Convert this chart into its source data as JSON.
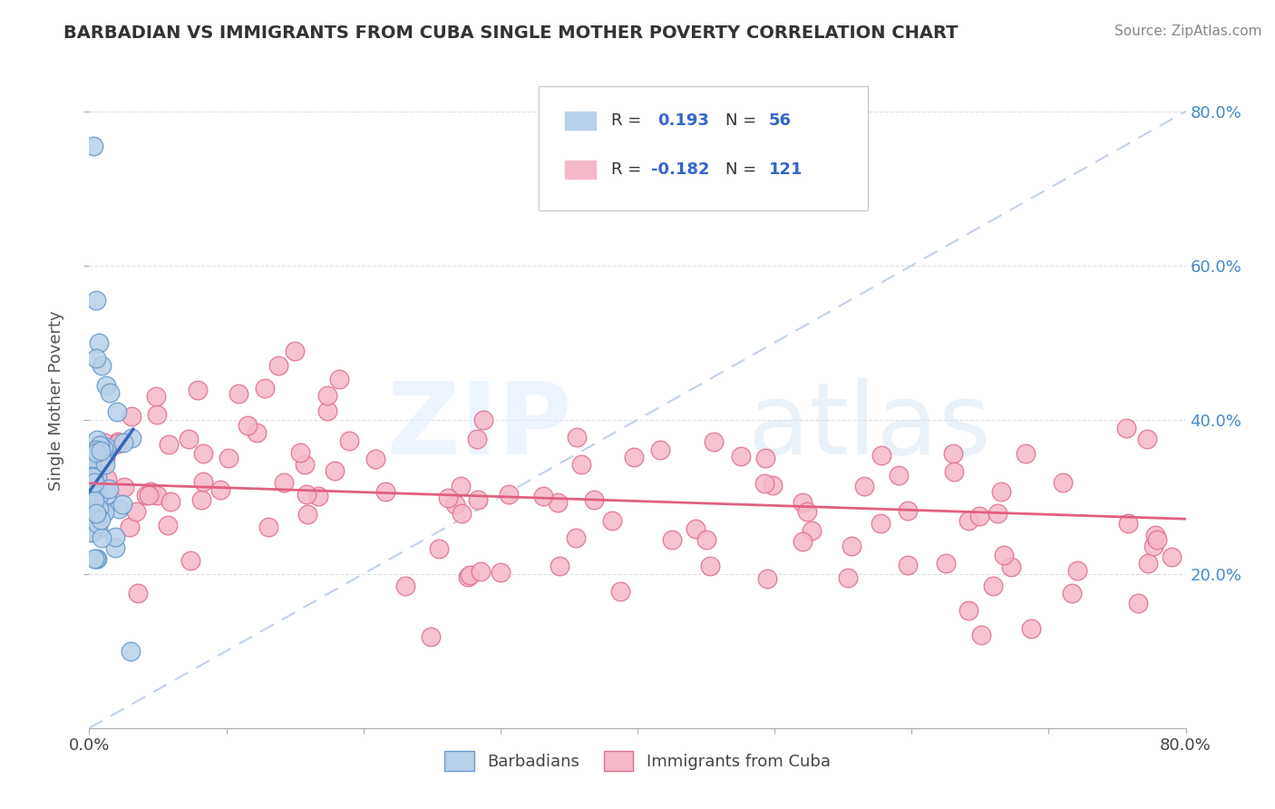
{
  "title": "BARBADIAN VS IMMIGRANTS FROM CUBA SINGLE MOTHER POVERTY CORRELATION CHART",
  "source": "Source: ZipAtlas.com",
  "ylabel": "Single Mother Poverty",
  "xlim": [
    0,
    0.8
  ],
  "ylim": [
    0,
    0.85
  ],
  "xticks": [
    0.0,
    0.1,
    0.2,
    0.3,
    0.4,
    0.5,
    0.6,
    0.7,
    0.8
  ],
  "xtick_labels_show": [
    "0.0%",
    "",
    "",
    "",
    "",
    "",
    "",
    "",
    "80.0%"
  ],
  "yticks_right": [
    0.2,
    0.4,
    0.6,
    0.8
  ],
  "ytick_labels_right": [
    "20.0%",
    "40.0%",
    "60.0%",
    "80.0%"
  ],
  "blue_color": "#b8d0e8",
  "pink_color": "#f5b8c8",
  "blue_edge": "#6699cc",
  "pink_edge": "#e07090",
  "trend_blue": "#3366bb",
  "trend_pink": "#e06080",
  "diag_color": "#b8cce4",
  "grid_color": "#d8d8d8",
  "R_blue": 0.193,
  "N_blue": 56,
  "R_pink": -0.182,
  "N_pink": 121,
  "legend_labels": [
    "Barbadians",
    "Immigrants from Cuba"
  ],
  "background_color": "#ffffff",
  "title_color": "#333333"
}
